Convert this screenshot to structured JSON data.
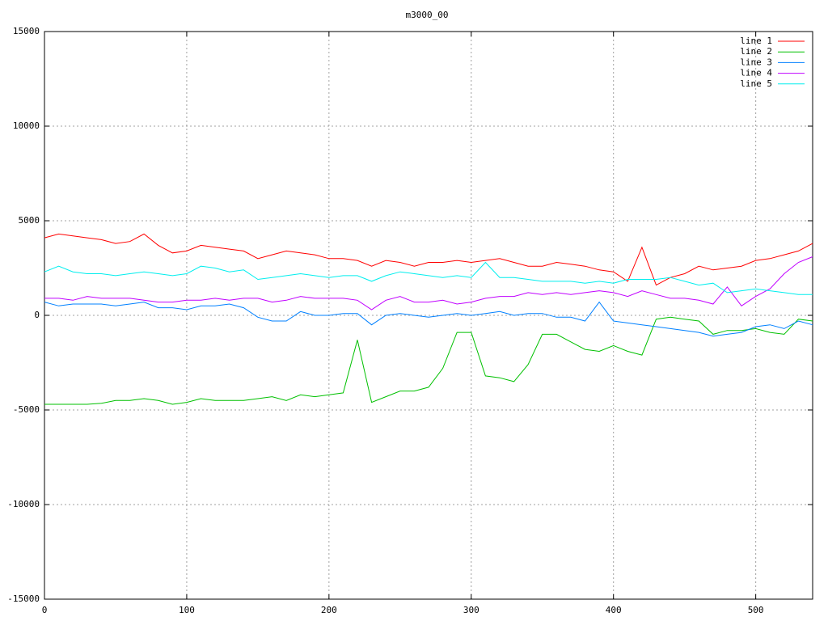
{
  "chart_data": {
    "type": "line",
    "title": "m3000_00",
    "x": [
      0,
      10,
      20,
      30,
      40,
      50,
      60,
      70,
      80,
      90,
      100,
      110,
      120,
      130,
      140,
      150,
      160,
      170,
      180,
      190,
      200,
      210,
      220,
      230,
      240,
      250,
      260,
      270,
      280,
      290,
      300,
      310,
      320,
      330,
      340,
      350,
      360,
      370,
      380,
      390,
      400,
      410,
      420,
      430,
      440,
      450,
      460,
      470,
      480,
      490,
      500,
      510,
      520,
      530,
      540
    ],
    "series": [
      {
        "name": "line 1",
        "color": "#ff0000",
        "values": [
          4100,
          4300,
          4200,
          4100,
          4000,
          3800,
          3900,
          4300,
          3700,
          3300,
          3400,
          3700,
          3600,
          3500,
          3400,
          3000,
          3200,
          3400,
          3300,
          3200,
          3000,
          3000,
          2900,
          2600,
          2900,
          2800,
          2600,
          2800,
          2800,
          2900,
          2800,
          2900,
          3000,
          2800,
          2600,
          2600,
          2800,
          2700,
          2600,
          2400,
          2300,
          1800,
          3600,
          1600,
          2000,
          2200,
          2600,
          2400,
          2500,
          2600,
          2900,
          3000,
          3200,
          3400,
          3800
        ]
      },
      {
        "name": "line 2",
        "color": "#00c000",
        "values": [
          -4700,
          -4700,
          -4700,
          -4700,
          -4650,
          -4500,
          -4500,
          -4400,
          -4500,
          -4700,
          -4600,
          -4400,
          -4500,
          -4500,
          -4500,
          -4400,
          -4300,
          -4500,
          -4200,
          -4300,
          -4200,
          -4100,
          -1300,
          -4600,
          -4300,
          -4000,
          -4000,
          -3800,
          -2800,
          -900,
          -900,
          -3200,
          -3300,
          -3500,
          -2600,
          -1000,
          -1000,
          -1400,
          -1800,
          -1900,
          -1600,
          -1900,
          -2100,
          -200,
          -100,
          -200,
          -300,
          -1000,
          -800,
          -800,
          -700,
          -900,
          -1000,
          -200,
          -300
        ]
      },
      {
        "name": "line 3",
        "color": "#0080ff",
        "values": [
          700,
          500,
          600,
          600,
          600,
          500,
          600,
          700,
          400,
          400,
          300,
          500,
          500,
          600,
          400,
          -100,
          -300,
          -300,
          200,
          0,
          0,
          100,
          100,
          -500,
          0,
          100,
          0,
          -100,
          0,
          100,
          0,
          100,
          200,
          0,
          100,
          100,
          -100,
          -100,
          -300,
          700,
          -300,
          -400,
          -500,
          -600,
          -700,
          -800,
          -900,
          -1100,
          -1000,
          -900,
          -600,
          -500,
          -700,
          -300,
          -500
        ]
      },
      {
        "name": "line 4",
        "color": "#c000ff",
        "values": [
          900,
          900,
          800,
          1000,
          900,
          900,
          900,
          800,
          700,
          700,
          800,
          800,
          900,
          800,
          900,
          900,
          700,
          800,
          1000,
          900,
          900,
          900,
          800,
          300,
          800,
          1000,
          700,
          700,
          800,
          600,
          700,
          900,
          1000,
          1000,
          1200,
          1100,
          1200,
          1100,
          1200,
          1300,
          1200,
          1000,
          1300,
          1100,
          900,
          900,
          800,
          600,
          1500,
          500,
          1000,
          1400,
          2200,
          2800,
          3100
        ]
      },
      {
        "name": "line 5",
        "color": "#00eeee",
        "values": [
          2300,
          2600,
          2300,
          2200,
          2200,
          2100,
          2200,
          2300,
          2200,
          2100,
          2200,
          2600,
          2500,
          2300,
          2400,
          1900,
          2000,
          2100,
          2200,
          2100,
          2000,
          2100,
          2100,
          1800,
          2100,
          2300,
          2200,
          2100,
          2000,
          2100,
          2000,
          2800,
          2000,
          2000,
          1900,
          1800,
          1800,
          1800,
          1700,
          1800,
          1700,
          1900,
          1900,
          1900,
          2000,
          1800,
          1600,
          1700,
          1200,
          1300,
          1400,
          1300,
          1200,
          1100,
          1100
        ]
      }
    ],
    "xlim": [
      0,
      540
    ],
    "xticks": [
      0,
      100,
      200,
      300,
      400,
      500
    ],
    "ylim": [
      -15000,
      15000
    ],
    "yticks": [
      -15000,
      -10000,
      -5000,
      0,
      5000,
      10000,
      15000
    ],
    "grid": true,
    "legend": "top-right"
  }
}
